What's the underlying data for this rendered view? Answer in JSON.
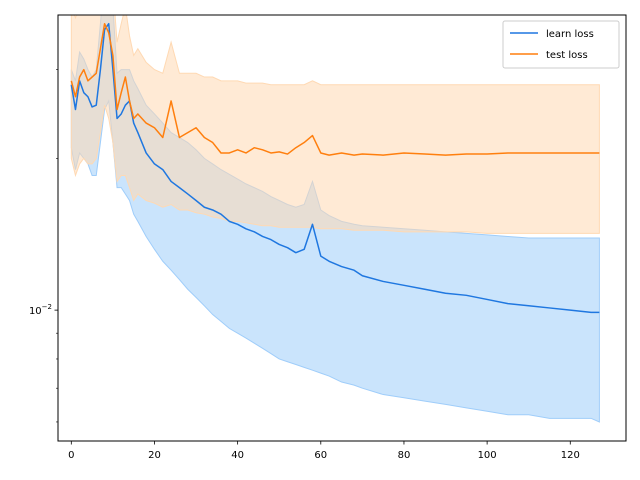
{
  "chart_data": {
    "type": "line",
    "title": "",
    "xlabel": "",
    "ylabel": "",
    "xlim": [
      -3.2,
      133.4
    ],
    "ylim": [
      0.0055,
      0.0385
    ],
    "yscale": "log",
    "grid": false,
    "legend_position": "upper right",
    "x_ticks": [
      0,
      20,
      40,
      60,
      80,
      100,
      120
    ],
    "x_tick_labels": [
      "0",
      "20",
      "40",
      "60",
      "80",
      "100",
      "120"
    ],
    "y_ticks": [
      0.01
    ],
    "y_tick_labels": [
      "10−2"
    ],
    "y_minor_ticks": [
      0.006,
      0.007,
      0.008,
      0.009,
      0.02,
      0.03
    ],
    "series": [
      {
        "name": "learn loss",
        "color": "#1f77e0",
        "band_color": "#9fcdfa",
        "x": [
          0,
          1,
          2,
          3,
          4,
          5,
          6,
          7,
          8,
          9,
          10,
          11,
          12,
          13,
          14,
          15,
          16,
          18,
          20,
          22,
          24,
          26,
          28,
          30,
          32,
          34,
          36,
          38,
          40,
          42,
          44,
          46,
          48,
          50,
          52,
          54,
          56,
          58,
          60,
          62,
          65,
          68,
          70,
          75,
          80,
          85,
          90,
          95,
          100,
          105,
          110,
          115,
          120,
          125,
          127
        ],
        "values": [
          0.028,
          0.025,
          0.0285,
          0.027,
          0.0265,
          0.0253,
          0.0255,
          0.03,
          0.036,
          0.037,
          0.03,
          0.024,
          0.0245,
          0.0255,
          0.026,
          0.0235,
          0.0225,
          0.0205,
          0.0195,
          0.019,
          0.018,
          0.0175,
          0.017,
          0.0165,
          0.016,
          0.0158,
          0.0155,
          0.015,
          0.0148,
          0.0145,
          0.0143,
          0.014,
          0.0138,
          0.0135,
          0.0133,
          0.013,
          0.0132,
          0.0148,
          0.0128,
          0.0125,
          0.0122,
          0.012,
          0.0117,
          0.0114,
          0.0112,
          0.011,
          0.0108,
          0.0107,
          0.0105,
          0.0103,
          0.0102,
          0.0101,
          0.01,
          0.0099,
          0.0099
        ],
        "lower": [
          0.021,
          0.019,
          0.0205,
          0.02,
          0.0195,
          0.0185,
          0.0185,
          0.0215,
          0.025,
          0.026,
          0.0215,
          0.0175,
          0.0175,
          0.017,
          0.0165,
          0.0155,
          0.015,
          0.014,
          0.0132,
          0.0125,
          0.012,
          0.0115,
          0.011,
          0.0106,
          0.0102,
          0.0098,
          0.0095,
          0.0092,
          0.009,
          0.0088,
          0.0086,
          0.0084,
          0.0082,
          0.008,
          0.0079,
          0.0078,
          0.0077,
          0.0076,
          0.0075,
          0.0074,
          0.0072,
          0.0071,
          0.007,
          0.0068,
          0.0067,
          0.0066,
          0.0065,
          0.0064,
          0.0063,
          0.0062,
          0.0062,
          0.0061,
          0.0061,
          0.0061,
          0.006
        ],
        "upper": [
          0.03,
          0.0285,
          0.0325,
          0.0315,
          0.03,
          0.029,
          0.03,
          0.037,
          0.046,
          0.047,
          0.04,
          0.0295,
          0.03,
          0.03,
          0.03,
          0.0285,
          0.0275,
          0.0255,
          0.0245,
          0.0235,
          0.0225,
          0.022,
          0.0215,
          0.0208,
          0.02,
          0.0195,
          0.019,
          0.0186,
          0.0182,
          0.0178,
          0.0175,
          0.0172,
          0.0168,
          0.0165,
          0.0162,
          0.016,
          0.0162,
          0.018,
          0.0158,
          0.0154,
          0.015,
          0.0148,
          0.0147,
          0.0146,
          0.0145,
          0.0144,
          0.0143,
          0.0142,
          0.0141,
          0.014,
          0.0139,
          0.0139,
          0.0139,
          0.0139,
          0.0139
        ]
      },
      {
        "name": "test loss",
        "color": "#ff7f0e",
        "band_color": "#ffd9b3",
        "x": [
          0,
          1,
          2,
          3,
          4,
          5,
          6,
          7,
          8,
          9,
          10,
          11,
          12,
          13,
          14,
          15,
          16,
          18,
          20,
          22,
          24,
          26,
          28,
          30,
          32,
          34,
          36,
          38,
          40,
          42,
          44,
          46,
          48,
          50,
          52,
          54,
          56,
          58,
          60,
          62,
          65,
          68,
          70,
          75,
          80,
          85,
          90,
          95,
          100,
          105,
          110,
          115,
          120,
          125,
          127
        ],
        "values": [
          0.0285,
          0.0265,
          0.029,
          0.03,
          0.0285,
          0.029,
          0.0295,
          0.033,
          0.037,
          0.0355,
          0.032,
          0.025,
          0.027,
          0.029,
          0.026,
          0.024,
          0.0245,
          0.0235,
          0.023,
          0.022,
          0.026,
          0.022,
          0.0225,
          0.023,
          0.022,
          0.0215,
          0.0205,
          0.0205,
          0.0208,
          0.0205,
          0.021,
          0.0208,
          0.0205,
          0.0206,
          0.0204,
          0.021,
          0.0215,
          0.0222,
          0.0205,
          0.0203,
          0.0205,
          0.0203,
          0.0204,
          0.0203,
          0.0205,
          0.0204,
          0.0203,
          0.0204,
          0.0204,
          0.0205,
          0.0205,
          0.0205,
          0.0205,
          0.0205,
          0.0205
        ],
        "lower": [
          0.02,
          0.0185,
          0.0195,
          0.02,
          0.0195,
          0.0195,
          0.02,
          0.0225,
          0.0255,
          0.024,
          0.0215,
          0.018,
          0.0185,
          0.0185,
          0.0175,
          0.0165,
          0.017,
          0.0165,
          0.0163,
          0.016,
          0.0162,
          0.0158,
          0.0158,
          0.0156,
          0.0155,
          0.0153,
          0.0152,
          0.015,
          0.015,
          0.0149,
          0.0148,
          0.0147,
          0.0147,
          0.0146,
          0.0146,
          0.0146,
          0.0146,
          0.0146,
          0.0145,
          0.0145,
          0.0145,
          0.0144,
          0.0144,
          0.0144,
          0.0143,
          0.0143,
          0.0143,
          0.0143,
          0.0142,
          0.0142,
          0.0142,
          0.0142,
          0.0142,
          0.0142,
          0.0142
        ],
        "upper": [
          0.04,
          0.038,
          0.04,
          0.042,
          0.039,
          0.04,
          0.041,
          0.046,
          0.05,
          0.049,
          0.044,
          0.034,
          0.037,
          0.04,
          0.035,
          0.032,
          0.033,
          0.031,
          0.03,
          0.0295,
          0.034,
          0.0295,
          0.0295,
          0.0295,
          0.029,
          0.029,
          0.0285,
          0.0285,
          0.0285,
          0.0282,
          0.0282,
          0.0282,
          0.028,
          0.028,
          0.028,
          0.028,
          0.028,
          0.0285,
          0.028,
          0.028,
          0.028,
          0.028,
          0.028,
          0.028,
          0.028,
          0.028,
          0.028,
          0.028,
          0.028,
          0.028,
          0.028,
          0.028,
          0.028,
          0.028,
          0.028
        ]
      }
    ]
  }
}
